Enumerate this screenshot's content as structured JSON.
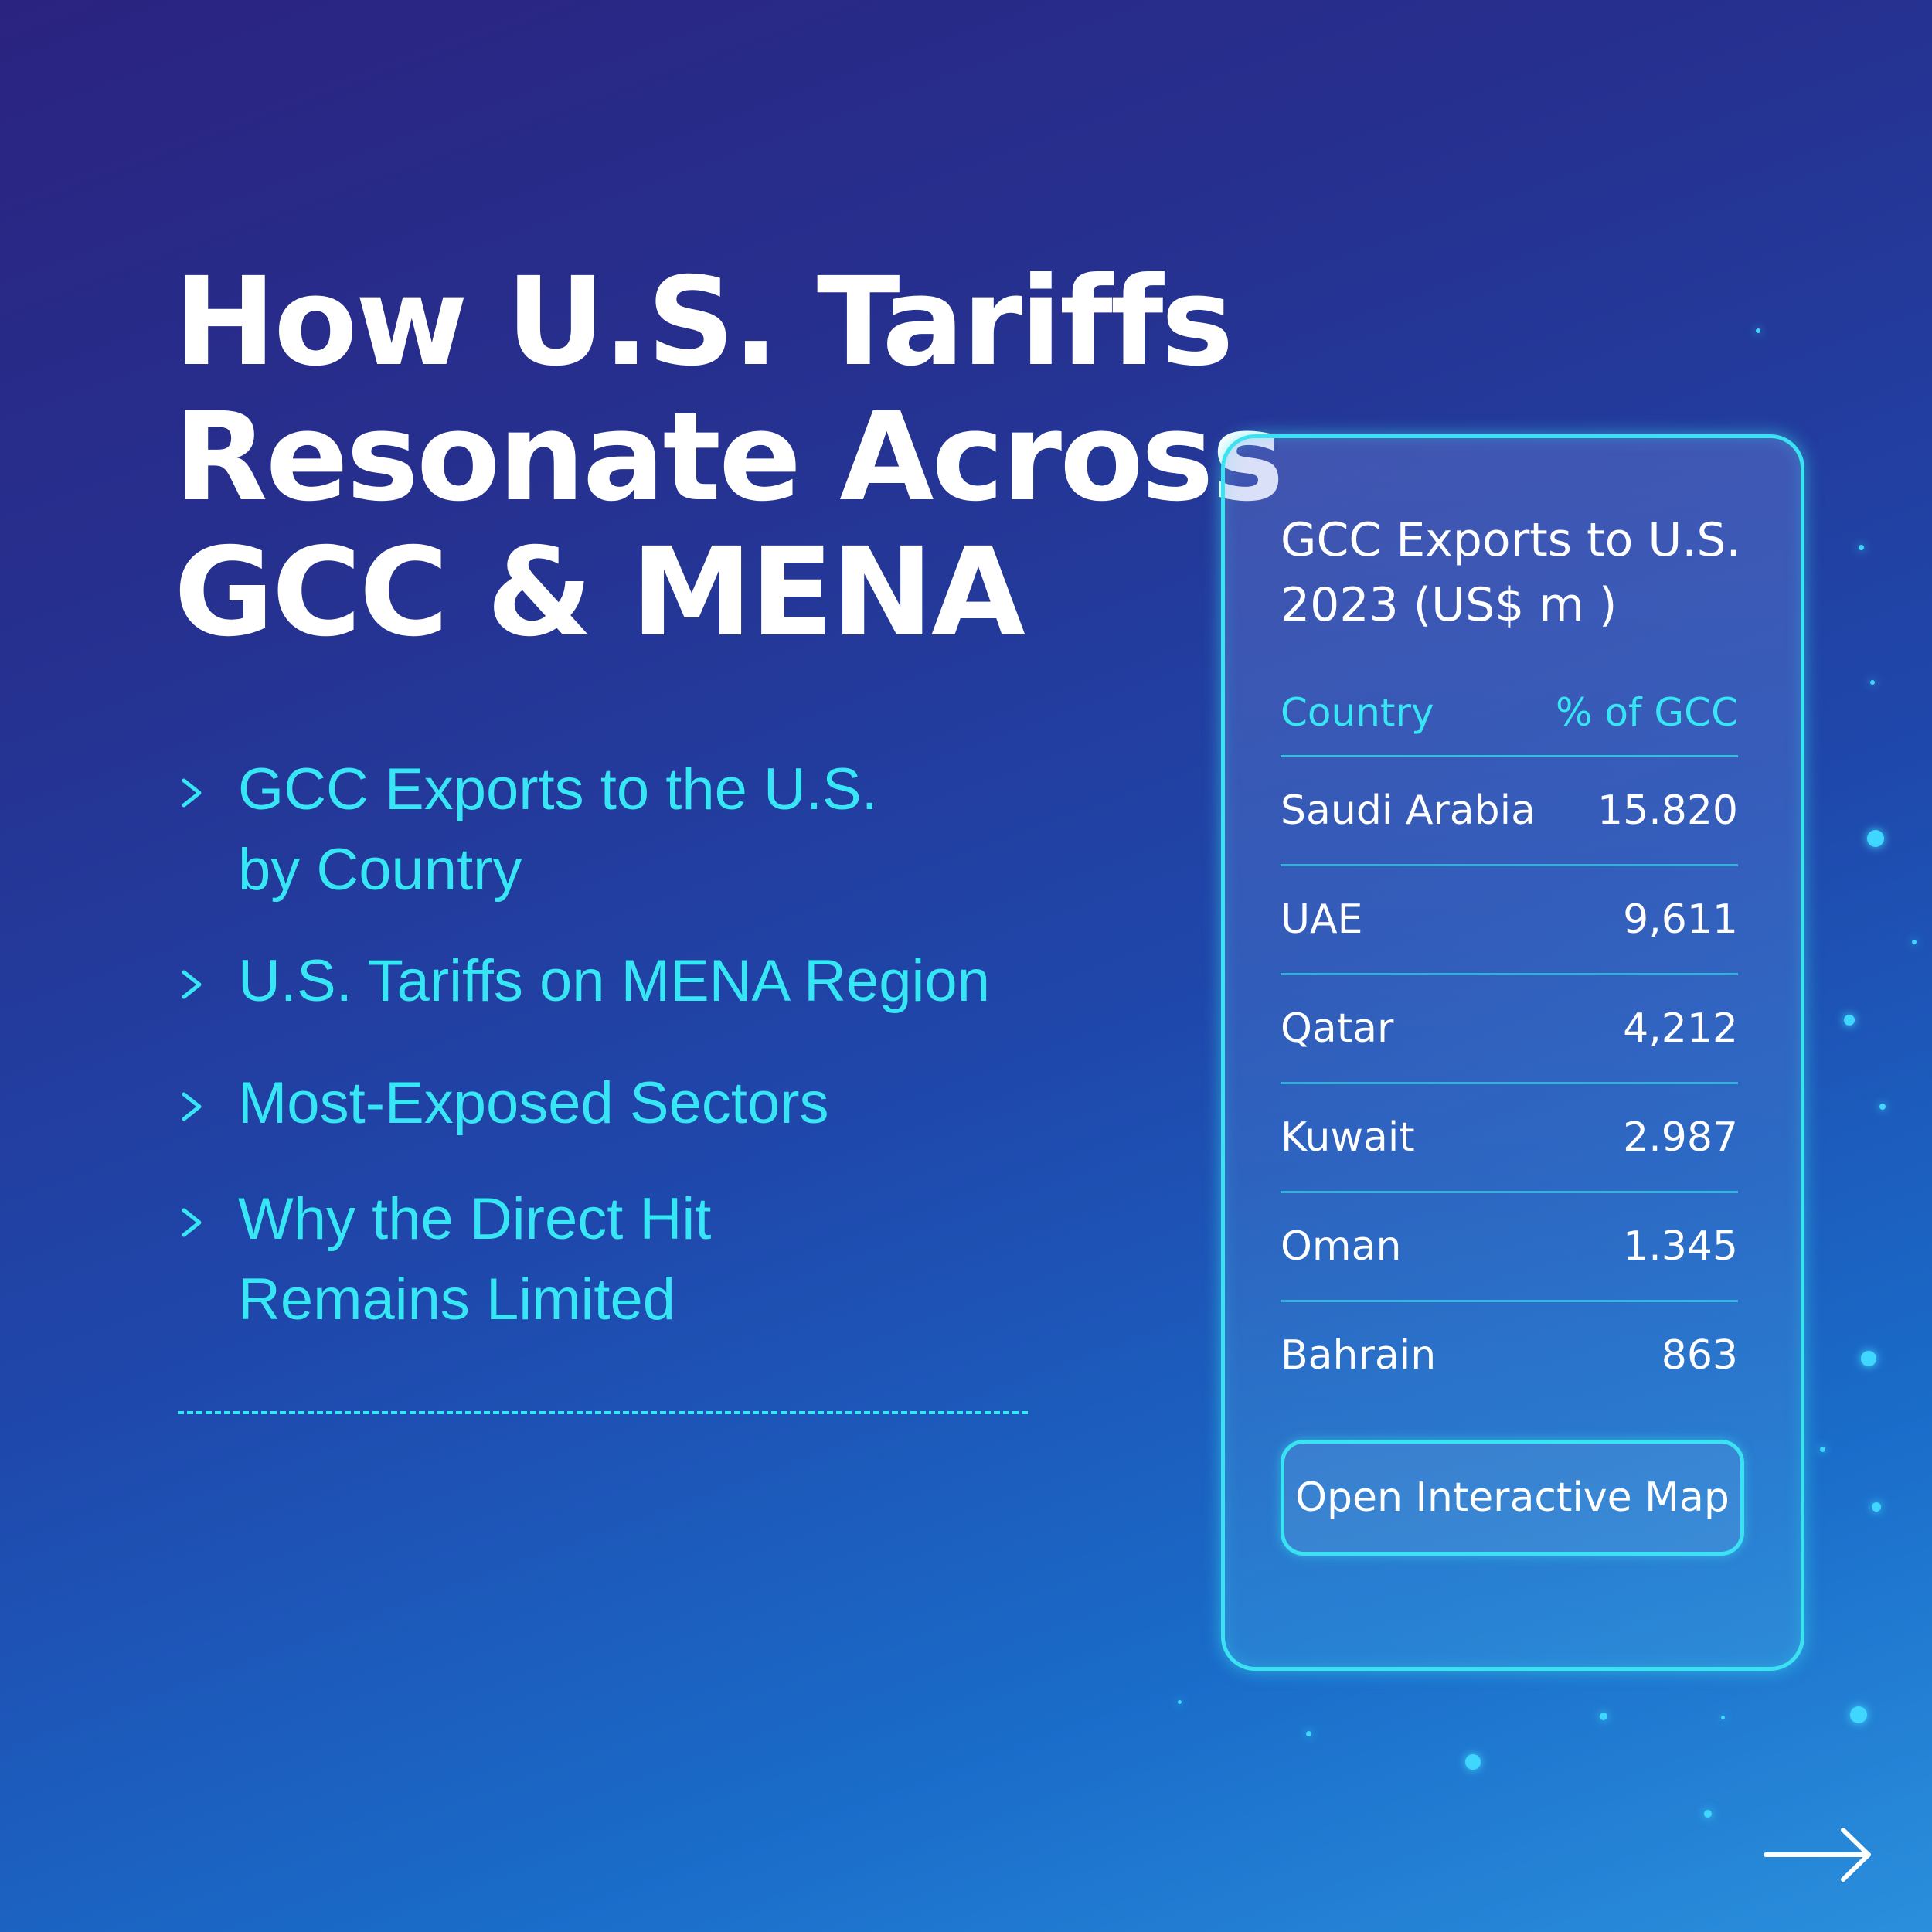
{
  "heading": {
    "line1": "How U.S. Tariffs",
    "line2": "Resonate Across",
    "line3": "GCC & MENA"
  },
  "bullets": [
    {
      "line1": "GCC Exports to the U.S.",
      "line2": "by Country"
    },
    {
      "line1": "U.S. Tariffs on MENA Region"
    },
    {
      "line1": "Most-Exposed Sectors"
    },
    {
      "line1": "Why the Direct Hit",
      "line2": "Remains Limited"
    }
  ],
  "panel": {
    "title_line1": "GCC Exports to U.S.",
    "title_line2": "2023 (US$ m  )",
    "columns": {
      "country": "Country",
      "value": "% of GCC"
    },
    "rows": [
      {
        "country": "Saudi Arabia",
        "value": "15.820"
      },
      {
        "country": "UAE",
        "value": "9,611"
      },
      {
        "country": "Qatar",
        "value": "4,212"
      },
      {
        "country": "Kuwait",
        "value": "2.987"
      },
      {
        "country": "Oman",
        "value": "1.345"
      },
      {
        "country": "Bahrain",
        "value": "863"
      }
    ],
    "button_label": "Open Interactive Map"
  },
  "icons": {
    "bullet": "chevron-right-icon",
    "next": "arrow-right-icon"
  },
  "colors": {
    "accent": "#37e6f5",
    "background_top": "#2b2380",
    "background_bottom": "#2a8fdc",
    "heading": "#ffffff"
  }
}
